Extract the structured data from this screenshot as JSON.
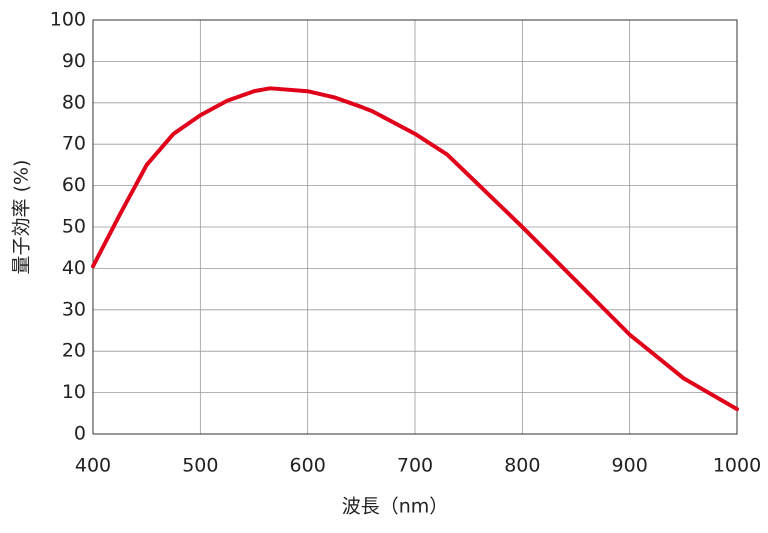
{
  "chart_data": {
    "type": "line",
    "x_label": "波長（nm）",
    "y_label": "量子効率 (%)",
    "series": [
      {
        "color": "#e0001a",
        "x": [
          400,
          425,
          450,
          475,
          500,
          525,
          550,
          565,
          600,
          625,
          650,
          660,
          700,
          730,
          750,
          800,
          850,
          900,
          950,
          1000
        ],
        "values": [
          40.5,
          53,
          65,
          72.5,
          77,
          80.5,
          82.8,
          83.5,
          82.8,
          81.3,
          79,
          78,
          72.5,
          67.5,
          62.5,
          50,
          37,
          24,
          13.5,
          6
        ]
      }
    ],
    "xlim": [
      400,
      1000
    ],
    "xticks": [
      400,
      500,
      600,
      700,
      800,
      900,
      1000
    ],
    "ylim": [
      0,
      100
    ],
    "yticks": [
      0,
      10,
      20,
      30,
      40,
      50,
      60,
      70,
      80,
      90,
      100
    ],
    "grid": true
  }
}
